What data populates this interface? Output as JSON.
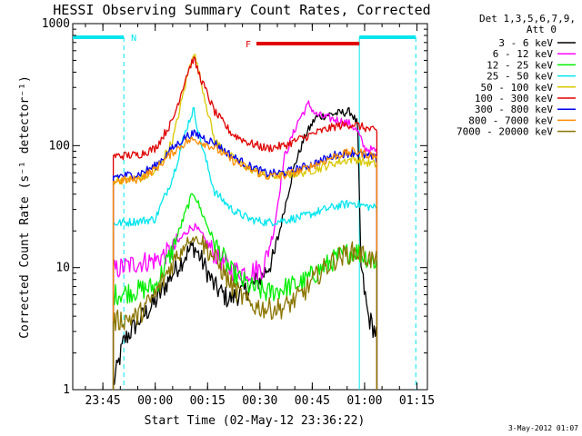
{
  "chart_data": {
    "type": "line",
    "title": "HESSI Observing Summary Count Rates, Corrected",
    "xlabel": "Start Time (02-May-12 23:36:22)",
    "ylabel": "Corrected Count Rate (s⁻¹ detector⁻¹)",
    "yscale": "log",
    "xlim": [
      "23:36:22",
      "01:18:00"
    ],
    "ylim": [
      1,
      1000
    ],
    "x_ticks": [
      "23:45",
      "00:00",
      "00:15",
      "00:30",
      "00:45",
      "01:00",
      "01:15"
    ],
    "y_ticks": [
      "1",
      "10",
      "100",
      "1000"
    ],
    "grid": false,
    "legend_header": [
      "Det 1,3,5,6,7,9,",
      "Att 0"
    ],
    "legend_position": "right",
    "date_stamp": "3-May-2012 01:07",
    "night_marker": {
      "label": "N",
      "color": "#00e5ee",
      "intervals": [
        [
          "23:36:22",
          "23:51:00"
        ],
        [
          "00:58:30",
          "01:14:40"
        ]
      ]
    },
    "flare_marker": {
      "label": "F",
      "color": "#e00000",
      "interval": [
        "00:29:00",
        "00:58:30"
      ]
    },
    "data_window": [
      "23:48:00",
      "01:03:30"
    ],
    "series": [
      {
        "name": "3 - 6 keV",
        "color": "#000000",
        "points": [
          [
            "23:48:00",
            1.1
          ],
          [
            "23:51:00",
            2.5
          ],
          [
            "23:55:00",
            3.6
          ],
          [
            "00:00:00",
            5.2
          ],
          [
            "00:05:00",
            9.0
          ],
          [
            "00:09:00",
            13
          ],
          [
            "00:11:00",
            15
          ],
          [
            "00:13:00",
            12
          ],
          [
            "00:17:00",
            7.0
          ],
          [
            "00:21:00",
            5.5
          ],
          [
            "00:26:00",
            6.5
          ],
          [
            "00:30:00",
            8
          ],
          [
            "00:34:00",
            12
          ],
          [
            "00:37:00",
            30
          ],
          [
            "00:40:00",
            70
          ],
          [
            "00:43:00",
            120
          ],
          [
            "00:46:00",
            170
          ],
          [
            "00:50:00",
            180
          ],
          [
            "00:53:00",
            185
          ],
          [
            "00:56:00",
            190
          ],
          [
            "00:58:00",
            150
          ],
          [
            "00:59:00",
            10
          ],
          [
            "01:01:00",
            4
          ],
          [
            "01:03:30",
            2.8
          ]
        ]
      },
      {
        "name": "6 - 12 keV",
        "color": "#ff00ff",
        "points": [
          [
            "23:48:00",
            9.5
          ],
          [
            "23:55:00",
            11
          ],
          [
            "00:00:00",
            11.5
          ],
          [
            "00:05:00",
            14
          ],
          [
            "00:09:00",
            20
          ],
          [
            "00:11:00",
            22
          ],
          [
            "00:13:00",
            19
          ],
          [
            "00:17:00",
            13
          ],
          [
            "00:22:00",
            9.5
          ],
          [
            "00:27:00",
            9.2
          ],
          [
            "00:31:00",
            10
          ],
          [
            "00:34:00",
            20
          ],
          [
            "00:37:00",
            80
          ],
          [
            "00:41:00",
            160
          ],
          [
            "00:44:00",
            220
          ],
          [
            "00:46:00",
            180
          ],
          [
            "00:49:00",
            170
          ],
          [
            "00:53:00",
            160
          ],
          [
            "00:56:00",
            150
          ],
          [
            "00:58:00",
            130
          ],
          [
            "01:00:00",
            95
          ],
          [
            "01:03:30",
            90
          ]
        ]
      },
      {
        "name": "12 - 25 keV",
        "color": "#00ee00",
        "points": [
          [
            "23:48:00",
            6
          ],
          [
            "23:55:00",
            6.5
          ],
          [
            "00:00:00",
            7
          ],
          [
            "00:05:00",
            14
          ],
          [
            "00:09:00",
            30
          ],
          [
            "00:11:00",
            42
          ],
          [
            "00:13:00",
            30
          ],
          [
            "00:17:00",
            16
          ],
          [
            "00:22:00",
            9
          ],
          [
            "00:27:00",
            7
          ],
          [
            "00:32:00",
            6.2
          ],
          [
            "00:37:00",
            6.8
          ],
          [
            "00:42:00",
            7.5
          ],
          [
            "00:47:00",
            9.5
          ],
          [
            "00:52:00",
            12
          ],
          [
            "00:57:00",
            14
          ],
          [
            "01:00:00",
            12.5
          ],
          [
            "01:03:30",
            11
          ]
        ]
      },
      {
        "name": "25 - 50 keV",
        "color": "#00e5ee",
        "points": [
          [
            "23:48:00",
            23
          ],
          [
            "23:55:00",
            24
          ],
          [
            "00:00:00",
            25
          ],
          [
            "00:05:00",
            55
          ],
          [
            "00:09:00",
            140
          ],
          [
            "00:11:00",
            200
          ],
          [
            "00:13:00",
            110
          ],
          [
            "00:17:00",
            42
          ],
          [
            "00:22:00",
            30
          ],
          [
            "00:27:00",
            25
          ],
          [
            "00:32:00",
            23.5
          ],
          [
            "00:37:00",
            24.5
          ],
          [
            "00:42:00",
            26
          ],
          [
            "00:47:00",
            29
          ],
          [
            "00:52:00",
            32
          ],
          [
            "00:57:00",
            34
          ],
          [
            "01:00:00",
            32
          ],
          [
            "01:03:30",
            31
          ]
        ]
      },
      {
        "name": "50 - 100 keV",
        "color": "#d9c800",
        "points": [
          [
            "23:48:00",
            52
          ],
          [
            "23:55:00",
            53
          ],
          [
            "00:00:00",
            60
          ],
          [
            "00:05:00",
            110
          ],
          [
            "00:09:00",
            350
          ],
          [
            "00:11:00",
            600
          ],
          [
            "00:13:00",
            350
          ],
          [
            "00:17:00",
            110
          ],
          [
            "00:22:00",
            80
          ],
          [
            "00:27:00",
            65
          ],
          [
            "00:32:00",
            56
          ],
          [
            "00:37:00",
            57
          ],
          [
            "00:42:00",
            60
          ],
          [
            "00:47:00",
            65
          ],
          [
            "00:52:00",
            73
          ],
          [
            "00:57:00",
            78
          ],
          [
            "01:00:00",
            73
          ],
          [
            "01:03:30",
            70
          ]
        ]
      },
      {
        "name": "100 - 300 keV",
        "color": "#e00000",
        "points": [
          [
            "23:48:00",
            82
          ],
          [
            "23:55:00",
            84
          ],
          [
            "00:00:00",
            95
          ],
          [
            "00:05:00",
            160
          ],
          [
            "00:09:00",
            380
          ],
          [
            "00:11:00",
            520
          ],
          [
            "00:13:00",
            360
          ],
          [
            "00:17:00",
            190
          ],
          [
            "00:22:00",
            125
          ],
          [
            "00:27:00",
            105
          ],
          [
            "00:32:00",
            95
          ],
          [
            "00:37:00",
            100
          ],
          [
            "00:42:00",
            115
          ],
          [
            "00:47:00",
            130
          ],
          [
            "00:52:00",
            145
          ],
          [
            "00:57:00",
            150
          ],
          [
            "01:00:00",
            140
          ],
          [
            "01:03:30",
            130
          ]
        ]
      },
      {
        "name": "300 - 800 keV",
        "color": "#0000ee",
        "points": [
          [
            "23:48:00",
            56
          ],
          [
            "23:55:00",
            58
          ],
          [
            "00:00:00",
            68
          ],
          [
            "00:05:00",
            95
          ],
          [
            "00:09:00",
            120
          ],
          [
            "00:11:00",
            125
          ],
          [
            "00:13:00",
            120
          ],
          [
            "00:17:00",
            105
          ],
          [
            "00:22:00",
            82
          ],
          [
            "00:27:00",
            68
          ],
          [
            "00:32:00",
            59
          ],
          [
            "00:37:00",
            60
          ],
          [
            "00:42:00",
            66
          ],
          [
            "00:47:00",
            74
          ],
          [
            "00:52:00",
            85
          ],
          [
            "00:57:00",
            88
          ],
          [
            "01:00:00",
            83
          ],
          [
            "01:03:30",
            78
          ]
        ]
      },
      {
        "name": "800 - 7000 keV",
        "color": "#ff8c00",
        "points": [
          [
            "23:48:00",
            51
          ],
          [
            "23:55:00",
            53
          ],
          [
            "00:00:00",
            64
          ],
          [
            "00:05:00",
            88
          ],
          [
            "00:09:00",
            108
          ],
          [
            "00:11:00",
            112
          ],
          [
            "00:13:00",
            108
          ],
          [
            "00:17:00",
            96
          ],
          [
            "00:22:00",
            76
          ],
          [
            "00:27:00",
            64
          ],
          [
            "00:32:00",
            56
          ],
          [
            "00:37:00",
            57
          ],
          [
            "00:42:00",
            63
          ],
          [
            "00:47:00",
            72
          ],
          [
            "00:52:00",
            83
          ],
          [
            "00:57:00",
            90
          ],
          [
            "01:00:00",
            86
          ],
          [
            "01:03:30",
            81
          ]
        ]
      },
      {
        "name": "7000 - 20000 keV",
        "color": "#8b7500",
        "points": [
          [
            "23:48:00",
            3.6
          ],
          [
            "23:55:00",
            4.0
          ],
          [
            "00:00:00",
            6
          ],
          [
            "00:05:00",
            11
          ],
          [
            "00:09:00",
            16.5
          ],
          [
            "00:11:00",
            17.5
          ],
          [
            "00:13:00",
            16.5
          ],
          [
            "00:17:00",
            12
          ],
          [
            "00:22:00",
            7
          ],
          [
            "00:27:00",
            5
          ],
          [
            "00:32:00",
            4.6
          ],
          [
            "00:37:00",
            4.7
          ],
          [
            "00:42:00",
            6
          ],
          [
            "00:47:00",
            9
          ],
          [
            "00:52:00",
            12
          ],
          [
            "00:57:00",
            13.5
          ],
          [
            "01:00:00",
            12.5
          ],
          [
            "01:03:30",
            11
          ]
        ]
      }
    ]
  }
}
